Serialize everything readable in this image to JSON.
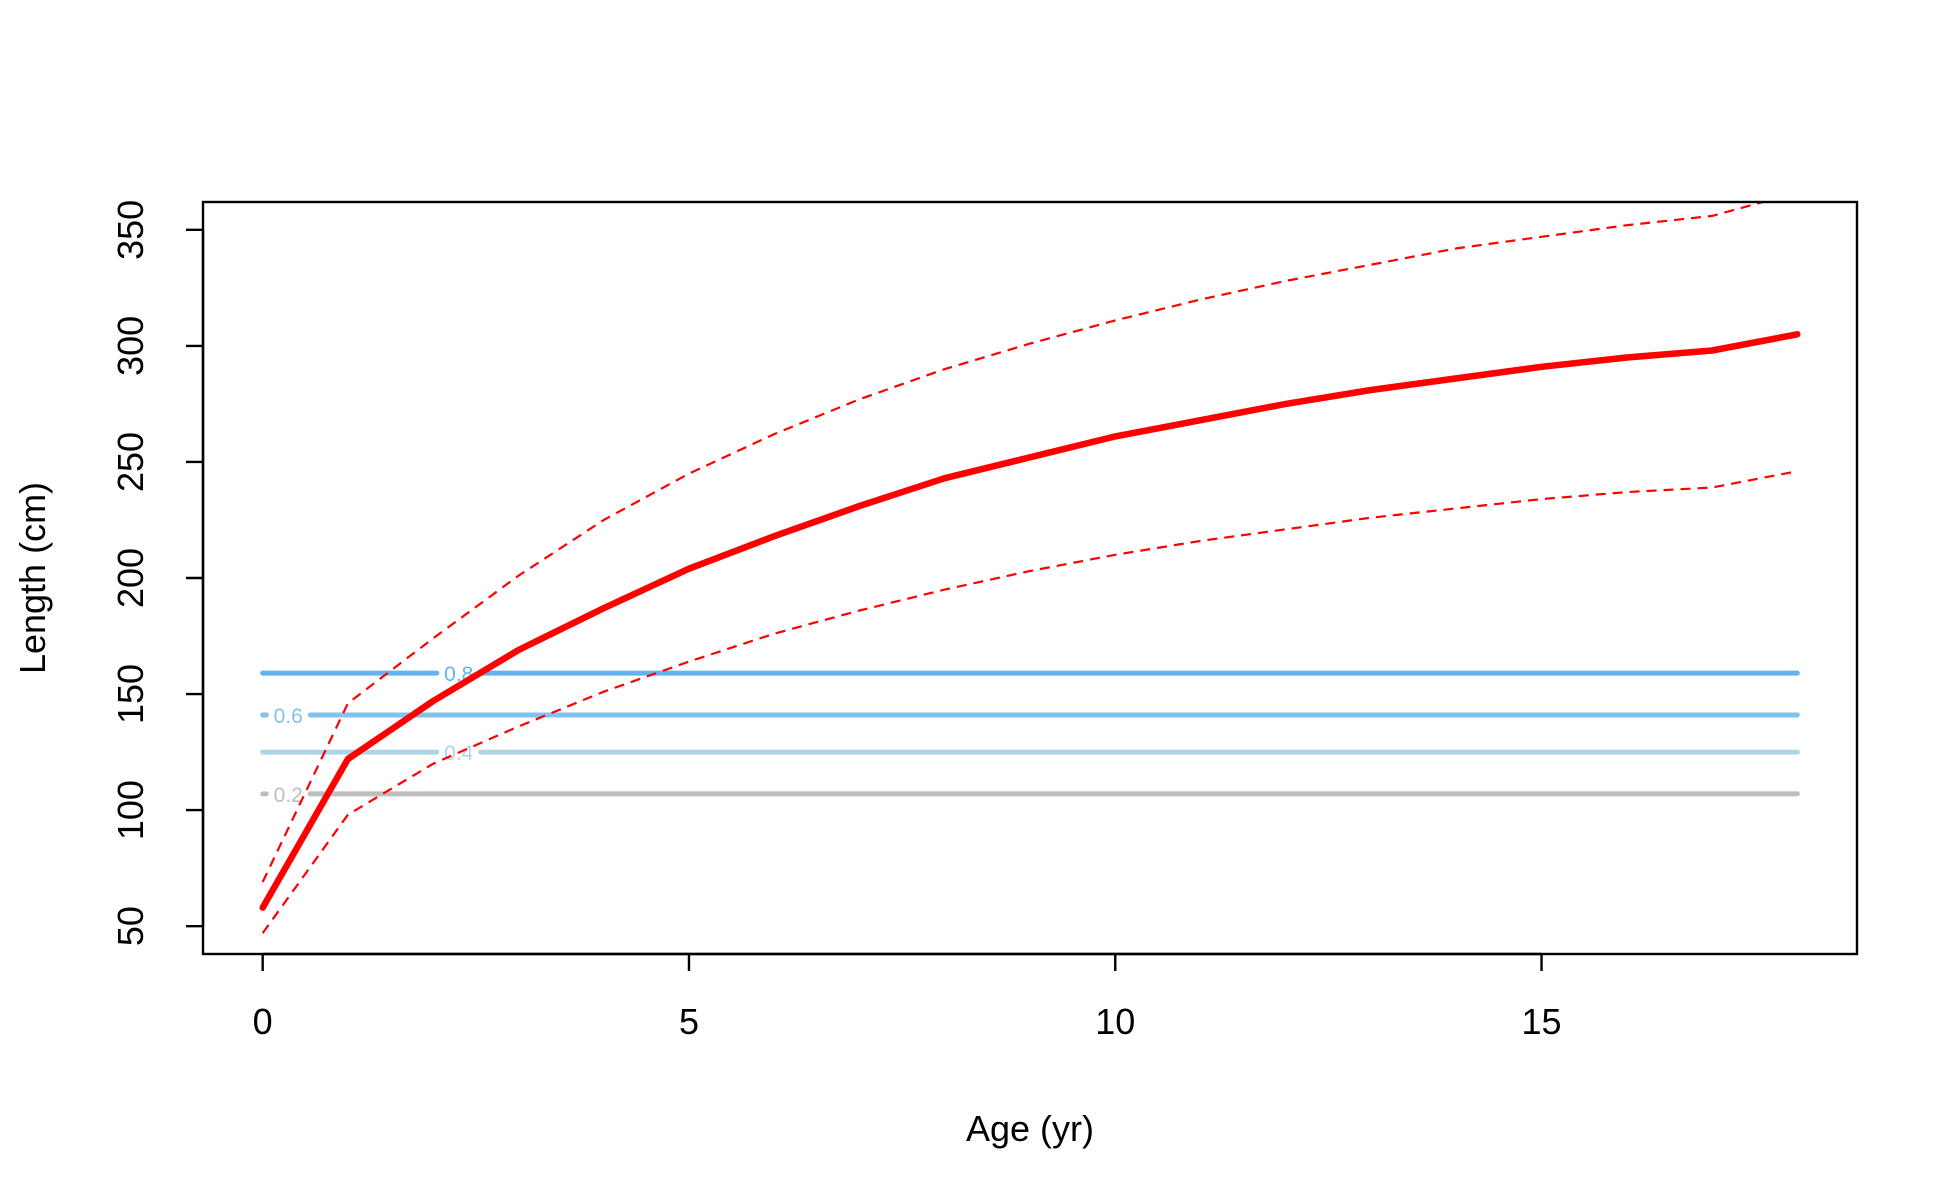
{
  "chart_data": {
    "type": "line",
    "xlabel": "Age (yr)",
    "ylabel": "Length (cm)",
    "xlim": [
      -0.7,
      18.7
    ],
    "ylim": [
      38,
      362
    ],
    "x_ticks": [
      0,
      5,
      10,
      15
    ],
    "y_ticks": [
      50,
      100,
      150,
      200,
      250,
      300,
      350
    ],
    "x_tick_labels": [
      "0",
      "5",
      "10",
      "15"
    ],
    "y_tick_labels": [
      "50",
      "100",
      "150",
      "200",
      "250",
      "300",
      "350"
    ],
    "grid": false,
    "legend": "none",
    "series": [
      {
        "style": "solid",
        "color": "#ff0000",
        "x": [
          0,
          1,
          2,
          3,
          4,
          5,
          6,
          7,
          8,
          9,
          10,
          11,
          12,
          13,
          14,
          15,
          16,
          17,
          18
        ],
        "y": [
          58,
          122,
          147,
          169,
          187,
          204,
          218,
          231,
          243,
          252,
          261,
          268,
          275,
          281,
          286,
          291,
          295,
          298,
          305
        ]
      },
      {
        "style": "dashed",
        "color": "#ff0000",
        "x": [
          0,
          1,
          2,
          3,
          4,
          5,
          6,
          7,
          8,
          9,
          10,
          11,
          12,
          13,
          14,
          15,
          16,
          17,
          18
        ],
        "y": [
          69,
          146,
          174,
          201,
          225,
          245,
          262,
          277,
          290,
          301,
          311,
          320,
          328,
          335,
          342,
          347,
          352,
          356,
          366
        ]
      },
      {
        "style": "dashed",
        "color": "#ff0000",
        "x": [
          0,
          1,
          2,
          3,
          4,
          5,
          6,
          7,
          8,
          9,
          10,
          11,
          12,
          13,
          14,
          15,
          16,
          17,
          18
        ],
        "y": [
          47,
          98,
          120,
          136,
          151,
          164,
          176,
          186,
          195,
          203,
          210,
          216,
          221,
          226,
          230,
          234,
          237,
          239,
          246
        ]
      }
    ],
    "contours": [
      {
        "level": 0.8,
        "label": "0.8",
        "y": 159,
        "color": "#63b2f1",
        "label_x": 2.3
      },
      {
        "level": 0.6,
        "label": "0.6",
        "y": 141,
        "color": "#83c2ed",
        "label_x": 0.3
      },
      {
        "level": 0.4,
        "label": "0.4",
        "y": 125,
        "color": "#acd6e6",
        "label_x": 2.3
      },
      {
        "level": 0.2,
        "label": "0.2",
        "y": 107,
        "color": "#bebebe",
        "label_x": 0.3
      }
    ],
    "contour_x_range": [
      0,
      18
    ]
  }
}
